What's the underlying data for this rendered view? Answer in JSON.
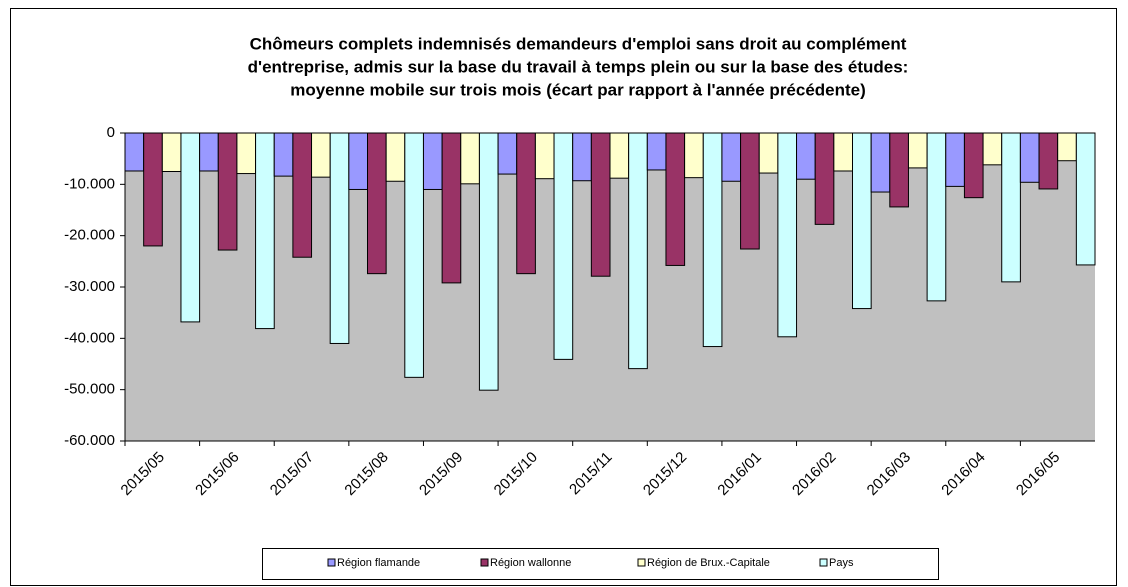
{
  "chart_data": {
    "type": "bar",
    "title": [
      "Chômeurs complets indemnisés demandeurs d'emploi sans droit au complément",
      "d'entreprise, admis sur la base du travail à temps plein ou sur la base des études:",
      "moyenne mobile sur trois mois (écart par rapport à l'année précédente)"
    ],
    "categories": [
      "2015/05",
      "2015/06",
      "2015/07",
      "2015/08",
      "2015/09",
      "2015/10",
      "2015/11",
      "2015/12",
      "2016/01",
      "2016/02",
      "2016/03",
      "2016/04",
      "2016/05"
    ],
    "series": [
      {
        "name": "Région flamande",
        "color": "#9999ff",
        "values": [
          -7400,
          -7400,
          -8400,
          -11000,
          -11000,
          -8000,
          -9300,
          -7200,
          -9400,
          -9000,
          -11500,
          -10400,
          -9600
        ]
      },
      {
        "name": "Région wallonne",
        "color": "#993366",
        "values": [
          -22000,
          -22800,
          -24200,
          -27400,
          -29200,
          -27400,
          -27900,
          -25800,
          -22600,
          -17800,
          -14400,
          -12600,
          -10900
        ]
      },
      {
        "name": "Région de Brux.-Capitale",
        "color": "#ffffcc",
        "values": [
          -7500,
          -7900,
          -8600,
          -9400,
          -9900,
          -8900,
          -8800,
          -8700,
          -7800,
          -7400,
          -6800,
          -6200,
          -5400
        ]
      },
      {
        "name": "Pays",
        "color": "#ccffff",
        "values": [
          -36800,
          -38100,
          -41000,
          -47600,
          -50100,
          -44100,
          -45900,
          -41600,
          -39700,
          -34200,
          -32700,
          -29000,
          -25700
        ]
      }
    ],
    "ylim": [
      -60000,
      0
    ],
    "yticks": [
      0,
      {
        "value": -10000,
        "label": "-10.000"
      },
      {
        "value": -20000,
        "label": "-20.000"
      },
      {
        "value": -30000,
        "label": "-30.000"
      },
      {
        "value": -40000,
        "label": "-40.000"
      },
      {
        "value": -50000,
        "label": "-50.000"
      },
      {
        "value": -60000,
        "label": "-60.000"
      }
    ],
    "plot_background": "#c0c0c0",
    "legend": "bottom"
  }
}
